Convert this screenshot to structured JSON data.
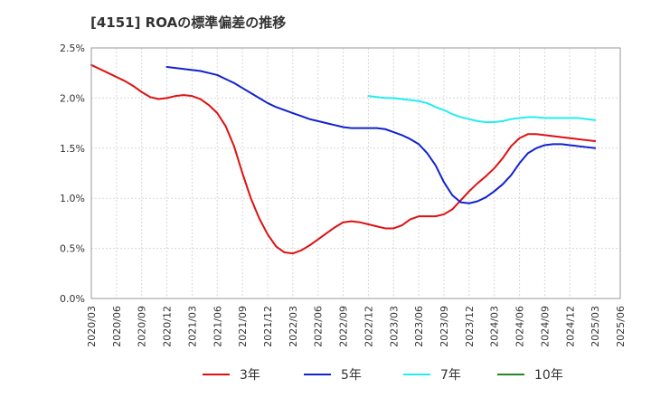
{
  "chart_data": {
    "type": "line",
    "title": "[4151]  ROAの標準偏差の推移",
    "xlabel": "",
    "ylabel": "",
    "x_ticks": [
      "2020/03",
      "2020/06",
      "2020/09",
      "2020/12",
      "2021/03",
      "2021/06",
      "2021/09",
      "2021/12",
      "2022/03",
      "2022/06",
      "2022/09",
      "2022/12",
      "2023/03",
      "2023/06",
      "2023/09",
      "2023/12",
      "2024/03",
      "2024/06",
      "2024/09",
      "2024/12",
      "2025/03",
      "2025/06"
    ],
    "y_ticks": [
      "0.0%",
      "0.5%",
      "1.0%",
      "1.5%",
      "2.0%",
      "2.5%"
    ],
    "ylim": [
      0.0,
      2.5
    ],
    "grid": true,
    "legend_position": "bottom",
    "series": [
      {
        "name": "3年",
        "color": "#dd1111",
        "points": [
          [
            "2020/03",
            2.33
          ],
          [
            "2020/04",
            2.29
          ],
          [
            "2020/05",
            2.25
          ],
          [
            "2020/06",
            2.21
          ],
          [
            "2020/07",
            2.17
          ],
          [
            "2020/08",
            2.12
          ],
          [
            "2020/09",
            2.06
          ],
          [
            "2020/10",
            2.01
          ],
          [
            "2020/11",
            1.99
          ],
          [
            "2020/12",
            2.0
          ],
          [
            "2021/01",
            2.02
          ],
          [
            "2021/02",
            2.03
          ],
          [
            "2021/03",
            2.02
          ],
          [
            "2021/04",
            1.99
          ],
          [
            "2021/05",
            1.93
          ],
          [
            "2021/06",
            1.85
          ],
          [
            "2021/07",
            1.72
          ],
          [
            "2021/08",
            1.52
          ],
          [
            "2021/09",
            1.25
          ],
          [
            "2021/10",
            1.0
          ],
          [
            "2021/11",
            0.8
          ],
          [
            "2021/12",
            0.64
          ],
          [
            "2022/01",
            0.52
          ],
          [
            "2022/02",
            0.46
          ],
          [
            "2022/03",
            0.45
          ],
          [
            "2022/04",
            0.48
          ],
          [
            "2022/05",
            0.53
          ],
          [
            "2022/06",
            0.59
          ],
          [
            "2022/07",
            0.65
          ],
          [
            "2022/08",
            0.71
          ],
          [
            "2022/09",
            0.76
          ],
          [
            "2022/10",
            0.77
          ],
          [
            "2022/11",
            0.76
          ],
          [
            "2022/12",
            0.74
          ],
          [
            "2023/01",
            0.72
          ],
          [
            "2023/02",
            0.7
          ],
          [
            "2023/03",
            0.7
          ],
          [
            "2023/04",
            0.73
          ],
          [
            "2023/05",
            0.79
          ],
          [
            "2023/06",
            0.82
          ],
          [
            "2023/07",
            0.82
          ],
          [
            "2023/08",
            0.82
          ],
          [
            "2023/09",
            0.84
          ],
          [
            "2023/10",
            0.89
          ],
          [
            "2023/11",
            0.98
          ],
          [
            "2023/12",
            1.07
          ],
          [
            "2024/01",
            1.15
          ],
          [
            "2024/02",
            1.22
          ],
          [
            "2024/03",
            1.3
          ],
          [
            "2024/04",
            1.4
          ],
          [
            "2024/05",
            1.52
          ],
          [
            "2024/06",
            1.6
          ],
          [
            "2024/07",
            1.64
          ],
          [
            "2024/08",
            1.64
          ],
          [
            "2024/09",
            1.63
          ],
          [
            "2024/10",
            1.62
          ],
          [
            "2024/11",
            1.61
          ],
          [
            "2024/12",
            1.6
          ],
          [
            "2025/01",
            1.59
          ],
          [
            "2025/02",
            1.58
          ],
          [
            "2025/03",
            1.57
          ]
        ]
      },
      {
        "name": "5年",
        "color": "#1122cc",
        "points": [
          [
            "2020/12",
            2.31
          ],
          [
            "2021/01",
            2.3
          ],
          [
            "2021/02",
            2.29
          ],
          [
            "2021/03",
            2.28
          ],
          [
            "2021/04",
            2.27
          ],
          [
            "2021/05",
            2.25
          ],
          [
            "2021/06",
            2.23
          ],
          [
            "2021/07",
            2.19
          ],
          [
            "2021/08",
            2.15
          ],
          [
            "2021/09",
            2.1
          ],
          [
            "2021/10",
            2.05
          ],
          [
            "2021/11",
            2.0
          ],
          [
            "2021/12",
            1.95
          ],
          [
            "2022/01",
            1.91
          ],
          [
            "2022/02",
            1.88
          ],
          [
            "2022/03",
            1.85
          ],
          [
            "2022/04",
            1.82
          ],
          [
            "2022/05",
            1.79
          ],
          [
            "2022/06",
            1.77
          ],
          [
            "2022/07",
            1.75
          ],
          [
            "2022/08",
            1.73
          ],
          [
            "2022/09",
            1.71
          ],
          [
            "2022/10",
            1.7
          ],
          [
            "2022/11",
            1.7
          ],
          [
            "2022/12",
            1.7
          ],
          [
            "2023/01",
            1.7
          ],
          [
            "2023/02",
            1.69
          ],
          [
            "2023/03",
            1.66
          ],
          [
            "2023/04",
            1.63
          ],
          [
            "2023/05",
            1.59
          ],
          [
            "2023/06",
            1.54
          ],
          [
            "2023/07",
            1.45
          ],
          [
            "2023/08",
            1.33
          ],
          [
            "2023/09",
            1.16
          ],
          [
            "2023/10",
            1.03
          ],
          [
            "2023/11",
            0.96
          ],
          [
            "2023/12",
            0.95
          ],
          [
            "2024/01",
            0.97
          ],
          [
            "2024/02",
            1.01
          ],
          [
            "2024/03",
            1.07
          ],
          [
            "2024/04",
            1.14
          ],
          [
            "2024/05",
            1.23
          ],
          [
            "2024/06",
            1.35
          ],
          [
            "2024/07",
            1.45
          ],
          [
            "2024/08",
            1.5
          ],
          [
            "2024/09",
            1.53
          ],
          [
            "2024/10",
            1.54
          ],
          [
            "2024/11",
            1.54
          ],
          [
            "2024/12",
            1.53
          ],
          [
            "2025/01",
            1.52
          ],
          [
            "2025/02",
            1.51
          ],
          [
            "2025/03",
            1.5
          ]
        ]
      },
      {
        "name": "7年",
        "color": "#22eeee",
        "points": [
          [
            "2022/12",
            2.02
          ],
          [
            "2023/01",
            2.01
          ],
          [
            "2023/02",
            2.0
          ],
          [
            "2023/03",
            2.0
          ],
          [
            "2023/04",
            1.99
          ],
          [
            "2023/05",
            1.98
          ],
          [
            "2023/06",
            1.97
          ],
          [
            "2023/07",
            1.95
          ],
          [
            "2023/08",
            1.91
          ],
          [
            "2023/09",
            1.88
          ],
          [
            "2023/10",
            1.84
          ],
          [
            "2023/11",
            1.81
          ],
          [
            "2023/12",
            1.79
          ],
          [
            "2024/01",
            1.77
          ],
          [
            "2024/02",
            1.76
          ],
          [
            "2024/03",
            1.76
          ],
          [
            "2024/04",
            1.77
          ],
          [
            "2024/05",
            1.79
          ],
          [
            "2024/06",
            1.8
          ],
          [
            "2024/07",
            1.81
          ],
          [
            "2024/08",
            1.81
          ],
          [
            "2024/09",
            1.8
          ],
          [
            "2024/10",
            1.8
          ],
          [
            "2024/11",
            1.8
          ],
          [
            "2024/12",
            1.8
          ],
          [
            "2025/01",
            1.8
          ],
          [
            "2025/02",
            1.79
          ],
          [
            "2025/03",
            1.78
          ]
        ]
      },
      {
        "name": "10年",
        "color": "#228822",
        "points": []
      }
    ]
  }
}
